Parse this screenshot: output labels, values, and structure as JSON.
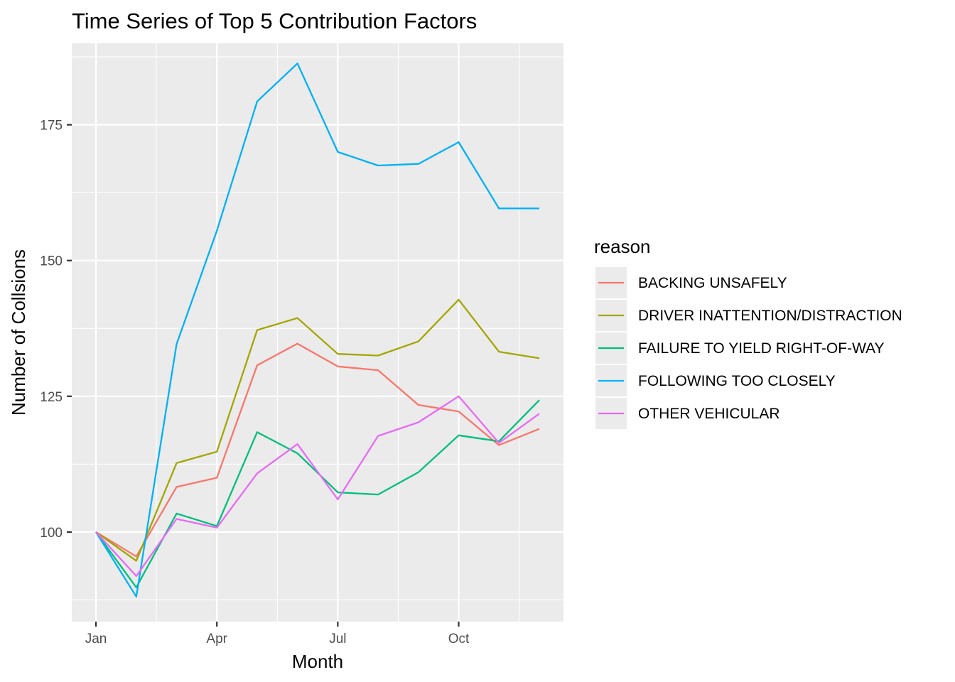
{
  "chart_data": {
    "type": "line",
    "title": "Time Series of Top 5 Contribution Factors",
    "xlabel": "Month",
    "ylabel": "Number of Collsions",
    "x": [
      1,
      2,
      3,
      4,
      5,
      6,
      7,
      8,
      9,
      10,
      11,
      12
    ],
    "x_ticks": [
      {
        "value": 1,
        "label": "Jan"
      },
      {
        "value": 4,
        "label": "Apr"
      },
      {
        "value": 7,
        "label": "Jul"
      },
      {
        "value": 10,
        "label": "Oct"
      }
    ],
    "xlim": [
      0.4,
      12.6
    ],
    "y_ticks": [
      100,
      125,
      150,
      175
    ],
    "ylim": [
      83.5,
      190.0
    ],
    "grid": true,
    "legend": {
      "title": "reason",
      "position": "right"
    },
    "series": [
      {
        "name": "BACKING UNSAFELY",
        "color": "#F8766D",
        "values": [
          100,
          95.5,
          108.3,
          110.0,
          130.7,
          134.7,
          130.5,
          129.8,
          123.4,
          122.2,
          116.0,
          119.0
        ]
      },
      {
        "name": "DRIVER INATTENTION/DISTRACTION",
        "color": "#A3A500",
        "values": [
          100,
          94.7,
          112.7,
          114.8,
          137.2,
          139.4,
          132.8,
          132.5,
          135.1,
          142.8,
          133.2,
          132.0
        ]
      },
      {
        "name": "FAILURE TO YIELD RIGHT-OF-WAY",
        "color": "#00BF7D",
        "values": [
          100,
          89.8,
          103.4,
          101.1,
          118.4,
          114.5,
          107.3,
          106.9,
          111.0,
          117.8,
          116.7,
          124.3
        ]
      },
      {
        "name": "FOLLOWING TOO CLOSELY",
        "color": "#00B0F6",
        "values": [
          100,
          88.1,
          134.6,
          155.5,
          179.3,
          186.3,
          170.0,
          167.5,
          167.8,
          171.8,
          159.6,
          159.6
        ]
      },
      {
        "name": "OTHER VEHICULAR",
        "color": "#E76BF3",
        "values": [
          100,
          91.9,
          102.4,
          100.8,
          110.8,
          116.2,
          106.0,
          117.7,
          120.2,
          125.0,
          116.4,
          121.8
        ]
      }
    ]
  }
}
